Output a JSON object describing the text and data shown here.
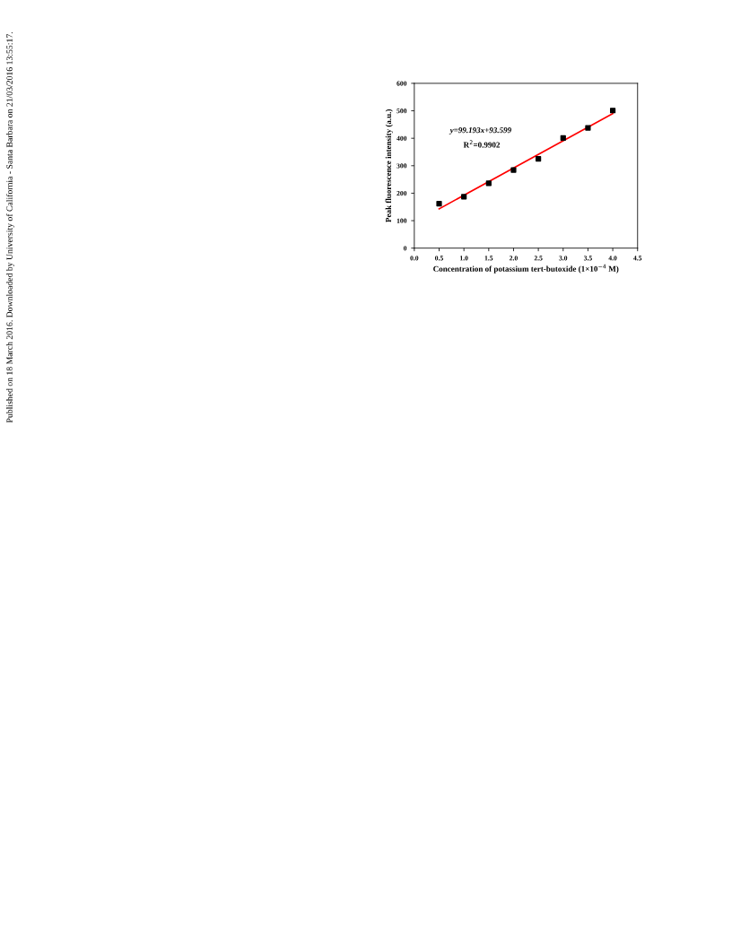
{
  "chart_data": {
    "type": "scatter",
    "xlabel": "Concentration of potassium tert-butoxide (1×10$^{−4}$ M)",
    "ylabel": "Peak fluorescence intensity (a.u.)",
    "xlim": [
      0.0,
      4.5
    ],
    "xticks": [
      {
        "value": 0,
        "label": "0.0"
      },
      0.5,
      {
        "value": 1,
        "label": "1.0"
      },
      1.5,
      {
        "value": 2,
        "label": "2.0"
      },
      2.5,
      {
        "value": 3,
        "label": "3.0"
      },
      3.5,
      {
        "value": 4,
        "label": "4.0"
      },
      4.5
    ],
    "ylim": [
      0,
      600
    ],
    "yticks": [
      0,
      100,
      200,
      300,
      400,
      500,
      600
    ],
    "grid": false,
    "series": [
      {
        "marker": "square",
        "color": "#000000",
        "x": [
          0.5,
          1.0,
          1.5,
          2.0,
          2.5,
          3.0,
          3.5,
          4.0
        ],
        "values": [
          162,
          187,
          236,
          284,
          325,
          401,
          438,
          501
        ]
      },
      {
        "type": "line",
        "marker": "none",
        "color": "#ff0000",
        "x": [
          0.5,
          4.0
        ],
        "values": [
          143,
          490
        ]
      }
    ],
    "annotations": [
      "y=99.193x+93.599",
      "R$^{2}$=0.9902",
      "Published on 18 March 2016. Downloaded by University of California - Santa Barbara on 21/03/2016 13:55:17."
    ]
  }
}
